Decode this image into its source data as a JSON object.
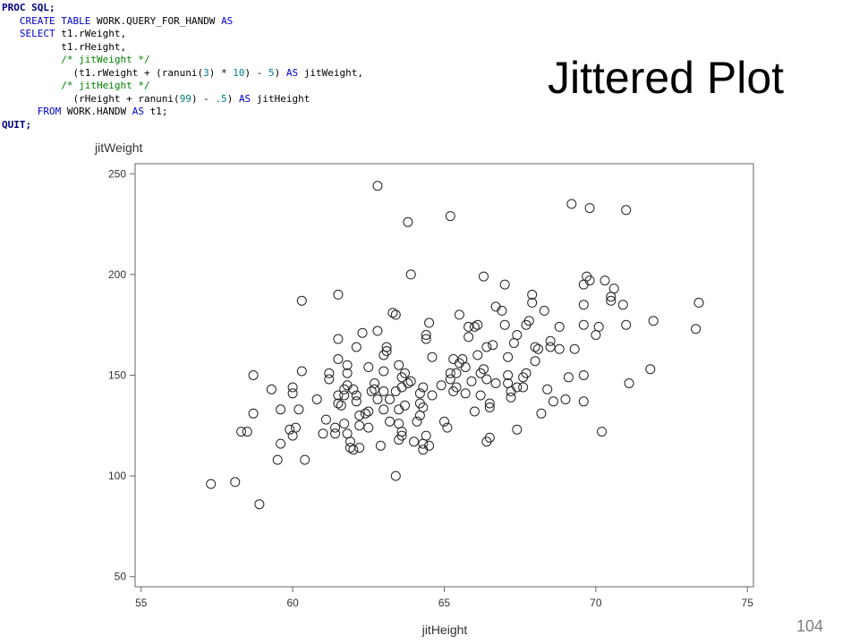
{
  "slide": {
    "title": "Jittered Plot",
    "page_number": "104"
  },
  "code": {
    "lines": [
      [
        {
          "t": "PROC SQL;",
          "c": "bd"
        }
      ],
      [
        {
          "t": "   "
        },
        {
          "t": "CREATE TABLE",
          "c": "kw"
        },
        {
          "t": " WORK.QUERY_FOR_HANDW "
        },
        {
          "t": "AS",
          "c": "kw"
        }
      ],
      [
        {
          "t": "   "
        },
        {
          "t": "SELECT",
          "c": "kw"
        },
        {
          "t": " t1.rWeight,"
        }
      ],
      [
        {
          "t": "          t1.rHeight,"
        }
      ],
      [
        {
          "t": "          "
        },
        {
          "t": "/* jitWeight */",
          "c": "cm"
        }
      ],
      [
        {
          "t": "            (t1.rWeight + (ranuni("
        },
        {
          "t": "3",
          "c": "nm"
        },
        {
          "t": ") * "
        },
        {
          "t": "10",
          "c": "nm"
        },
        {
          "t": ") - "
        },
        {
          "t": "5",
          "c": "nm"
        },
        {
          "t": ") "
        },
        {
          "t": "AS",
          "c": "kw"
        },
        {
          "t": " jitWeight,"
        }
      ],
      [
        {
          "t": "          "
        },
        {
          "t": "/* jitHeight */",
          "c": "cm"
        }
      ],
      [
        {
          "t": "            (rHeight + ranuni("
        },
        {
          "t": "99",
          "c": "nm"
        },
        {
          "t": ") - "
        },
        {
          "t": ".5",
          "c": "nm"
        },
        {
          "t": ") "
        },
        {
          "t": "AS",
          "c": "kw"
        },
        {
          "t": " jitHeight"
        }
      ],
      [
        {
          "t": "      "
        },
        {
          "t": "FROM",
          "c": "kw"
        },
        {
          "t": " WORK.HANDW "
        },
        {
          "t": "AS",
          "c": "kw"
        },
        {
          "t": " t1;"
        }
      ],
      [
        {
          "t": "QUIT;",
          "c": "bd"
        }
      ]
    ]
  },
  "chart_data": {
    "type": "scatter",
    "xlabel": "jitHeight",
    "ylabel": "jitWeight",
    "xlim": [
      54.8,
      75.2
    ],
    "ylim": [
      45,
      255
    ],
    "xticks": [
      55,
      60,
      65,
      70,
      75
    ],
    "yticks": [
      50,
      100,
      150,
      200,
      250
    ],
    "grid": false,
    "marker": "open-circle",
    "points": [
      [
        57.3,
        96
      ],
      [
        58.1,
        97
      ],
      [
        58.3,
        122
      ],
      [
        58.5,
        122
      ],
      [
        58.7,
        131
      ],
      [
        58.7,
        150
      ],
      [
        58.9,
        86
      ],
      [
        59.3,
        143
      ],
      [
        59.5,
        108
      ],
      [
        59.6,
        116
      ],
      [
        59.6,
        133
      ],
      [
        59.9,
        123
      ],
      [
        60.0,
        120
      ],
      [
        60.0,
        141
      ],
      [
        60.0,
        144
      ],
      [
        60.1,
        124
      ],
      [
        60.2,
        133
      ],
      [
        60.3,
        152
      ],
      [
        60.3,
        187
      ],
      [
        60.4,
        108
      ],
      [
        60.8,
        138
      ],
      [
        61.0,
        121
      ],
      [
        61.1,
        128
      ],
      [
        61.2,
        148
      ],
      [
        61.2,
        151
      ],
      [
        61.4,
        121
      ],
      [
        61.4,
        124
      ],
      [
        61.5,
        136
      ],
      [
        61.5,
        140
      ],
      [
        61.5,
        158
      ],
      [
        61.5,
        168
      ],
      [
        61.5,
        190
      ],
      [
        61.6,
        135
      ],
      [
        61.7,
        126
      ],
      [
        61.7,
        143
      ],
      [
        61.7,
        140
      ],
      [
        61.8,
        121
      ],
      [
        61.8,
        145
      ],
      [
        61.8,
        151
      ],
      [
        61.8,
        155
      ],
      [
        61.9,
        114
      ],
      [
        61.9,
        117
      ],
      [
        62.0,
        143
      ],
      [
        62.0,
        113
      ],
      [
        62.1,
        137
      ],
      [
        62.1,
        140
      ],
      [
        62.1,
        164
      ],
      [
        62.2,
        125
      ],
      [
        62.2,
        130
      ],
      [
        62.2,
        114
      ],
      [
        62.3,
        171
      ],
      [
        62.4,
        131
      ],
      [
        62.5,
        124
      ],
      [
        62.5,
        132
      ],
      [
        62.5,
        154
      ],
      [
        62.6,
        142
      ],
      [
        62.7,
        146
      ],
      [
        62.7,
        143
      ],
      [
        62.8,
        138
      ],
      [
        62.8,
        172
      ],
      [
        62.8,
        244
      ],
      [
        62.9,
        115
      ],
      [
        63.0,
        152
      ],
      [
        63.0,
        160
      ],
      [
        63.0,
        133
      ],
      [
        63.0,
        142
      ],
      [
        63.1,
        162
      ],
      [
        63.1,
        164
      ],
      [
        63.2,
        127
      ],
      [
        63.2,
        138
      ],
      [
        63.3,
        181
      ],
      [
        63.4,
        100
      ],
      [
        63.4,
        142
      ],
      [
        63.5,
        155
      ],
      [
        63.4,
        180
      ],
      [
        63.5,
        133
      ],
      [
        63.5,
        118
      ],
      [
        63.5,
        126
      ],
      [
        63.6,
        120
      ],
      [
        63.6,
        122
      ],
      [
        63.6,
        144
      ],
      [
        63.6,
        149
      ],
      [
        63.7,
        135
      ],
      [
        63.7,
        151
      ],
      [
        63.8,
        146
      ],
      [
        63.8,
        226
      ],
      [
        63.9,
        200
      ],
      [
        63.9,
        147
      ],
      [
        64.0,
        117
      ],
      [
        64.1,
        127
      ],
      [
        64.2,
        130
      ],
      [
        64.2,
        141
      ],
      [
        64.2,
        136
      ],
      [
        64.3,
        116
      ],
      [
        64.3,
        134
      ],
      [
        64.3,
        144
      ],
      [
        64.3,
        113
      ],
      [
        64.4,
        120
      ],
      [
        64.4,
        168
      ],
      [
        64.4,
        170
      ],
      [
        64.5,
        115
      ],
      [
        64.5,
        176
      ],
      [
        64.6,
        159
      ],
      [
        64.6,
        140
      ],
      [
        64.9,
        145
      ],
      [
        65.0,
        127
      ],
      [
        65.1,
        124
      ],
      [
        65.2,
        148
      ],
      [
        65.2,
        151
      ],
      [
        65.2,
        229
      ],
      [
        65.3,
        158
      ],
      [
        65.3,
        142
      ],
      [
        65.4,
        151
      ],
      [
        65.4,
        144
      ],
      [
        65.5,
        180
      ],
      [
        65.5,
        156
      ],
      [
        65.6,
        158
      ],
      [
        65.7,
        141
      ],
      [
        65.7,
        154
      ],
      [
        65.8,
        174
      ],
      [
        65.8,
        169
      ],
      [
        65.9,
        147
      ],
      [
        66.0,
        174
      ],
      [
        66.0,
        132
      ],
      [
        66.1,
        160
      ],
      [
        66.1,
        175
      ],
      [
        66.2,
        140
      ],
      [
        66.2,
        151
      ],
      [
        66.3,
        199
      ],
      [
        66.3,
        153
      ],
      [
        66.4,
        164
      ],
      [
        66.4,
        148
      ],
      [
        66.4,
        117
      ],
      [
        66.5,
        136
      ],
      [
        66.5,
        134
      ],
      [
        66.5,
        119
      ],
      [
        66.6,
        165
      ],
      [
        66.7,
        184
      ],
      [
        66.7,
        146
      ],
      [
        66.9,
        182
      ],
      [
        67.0,
        195
      ],
      [
        67.0,
        175
      ],
      [
        67.1,
        150
      ],
      [
        67.1,
        146
      ],
      [
        67.1,
        159
      ],
      [
        67.2,
        139
      ],
      [
        67.2,
        142
      ],
      [
        67.3,
        166
      ],
      [
        67.4,
        170
      ],
      [
        67.4,
        144
      ],
      [
        67.4,
        123
      ],
      [
        67.6,
        144
      ],
      [
        67.6,
        149
      ],
      [
        67.7,
        151
      ],
      [
        67.7,
        175
      ],
      [
        67.8,
        177
      ],
      [
        67.9,
        186
      ],
      [
        67.9,
        190
      ],
      [
        68.0,
        164
      ],
      [
        68.0,
        157
      ],
      [
        68.1,
        163
      ],
      [
        68.2,
        131
      ],
      [
        68.3,
        182
      ],
      [
        68.4,
        143
      ],
      [
        68.5,
        167
      ],
      [
        68.5,
        164
      ],
      [
        68.6,
        137
      ],
      [
        68.8,
        163
      ],
      [
        68.8,
        174
      ],
      [
        69.0,
        138
      ],
      [
        69.1,
        149
      ],
      [
        69.2,
        235
      ],
      [
        69.3,
        163
      ],
      [
        69.6,
        175
      ],
      [
        69.6,
        185
      ],
      [
        69.6,
        195
      ],
      [
        69.6,
        150
      ],
      [
        69.6,
        137
      ],
      [
        69.7,
        199
      ],
      [
        69.8,
        197
      ],
      [
        69.8,
        233
      ],
      [
        70.0,
        170
      ],
      [
        70.1,
        174
      ],
      [
        70.2,
        122
      ],
      [
        70.3,
        197
      ],
      [
        70.5,
        189
      ],
      [
        70.5,
        187
      ],
      [
        70.6,
        193
      ],
      [
        70.9,
        185
      ],
      [
        71.0,
        232
      ],
      [
        71.0,
        175
      ],
      [
        71.1,
        146
      ],
      [
        71.8,
        153
      ],
      [
        71.9,
        177
      ],
      [
        73.3,
        173
      ],
      [
        73.4,
        186
      ]
    ]
  }
}
